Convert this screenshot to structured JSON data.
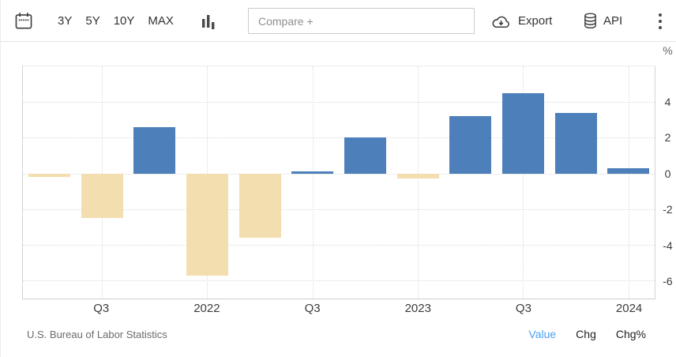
{
  "toolbar": {
    "calendar_icon": "calendar-icon",
    "range_buttons": [
      "3Y",
      "5Y",
      "10Y",
      "MAX"
    ],
    "chart_type_icon": "bar-chart-icon",
    "compare_placeholder": "Compare +",
    "export_label": "Export",
    "export_icon": "cloud-download-icon",
    "api_label": "API",
    "api_icon": "database-icon",
    "menu_icon": "kebab-menu-icon"
  },
  "chart_data": {
    "type": "bar",
    "title": "",
    "xlabel": "",
    "ylabel": "%",
    "ylim": [
      -7,
      6
    ],
    "yticks": [
      4,
      2,
      0,
      -2,
      -4,
      -6
    ],
    "ytick_labels": [
      "4",
      "2",
      "0",
      "-2",
      "-4",
      "-6"
    ],
    "grid": true,
    "legend": "none",
    "categories": [
      "2021 Q2",
      "2021 Q3",
      "2021 Q4",
      "2022 Q1",
      "2022 Q2",
      "2022 Q3",
      "2022 Q4",
      "2023 Q1",
      "2023 Q2",
      "2023 Q3",
      "2023 Q4",
      "2024 Q1"
    ],
    "values": [
      -0.2,
      -2.5,
      2.6,
      -5.7,
      -3.6,
      0.1,
      2.0,
      -0.3,
      3.2,
      4.5,
      3.4,
      0.3
    ],
    "x_tick_labels": [
      "Q3",
      "2022",
      "Q3",
      "2023",
      "Q3",
      "2024"
    ],
    "x_tick_bar_indexes": [
      1,
      3,
      5,
      7,
      9,
      11
    ],
    "positive_color": "#4d80ba",
    "negative_color": "#f3deb0",
    "gridline_color": "#dcdcdc"
  },
  "footer": {
    "source": "U.S. Bureau of Labor Statistics",
    "links": [
      {
        "label": "Value",
        "active": true
      },
      {
        "label": "Chg",
        "active": false
      },
      {
        "label": "Chg%",
        "active": false
      }
    ],
    "active_link_color": "#4aa0f0"
  }
}
